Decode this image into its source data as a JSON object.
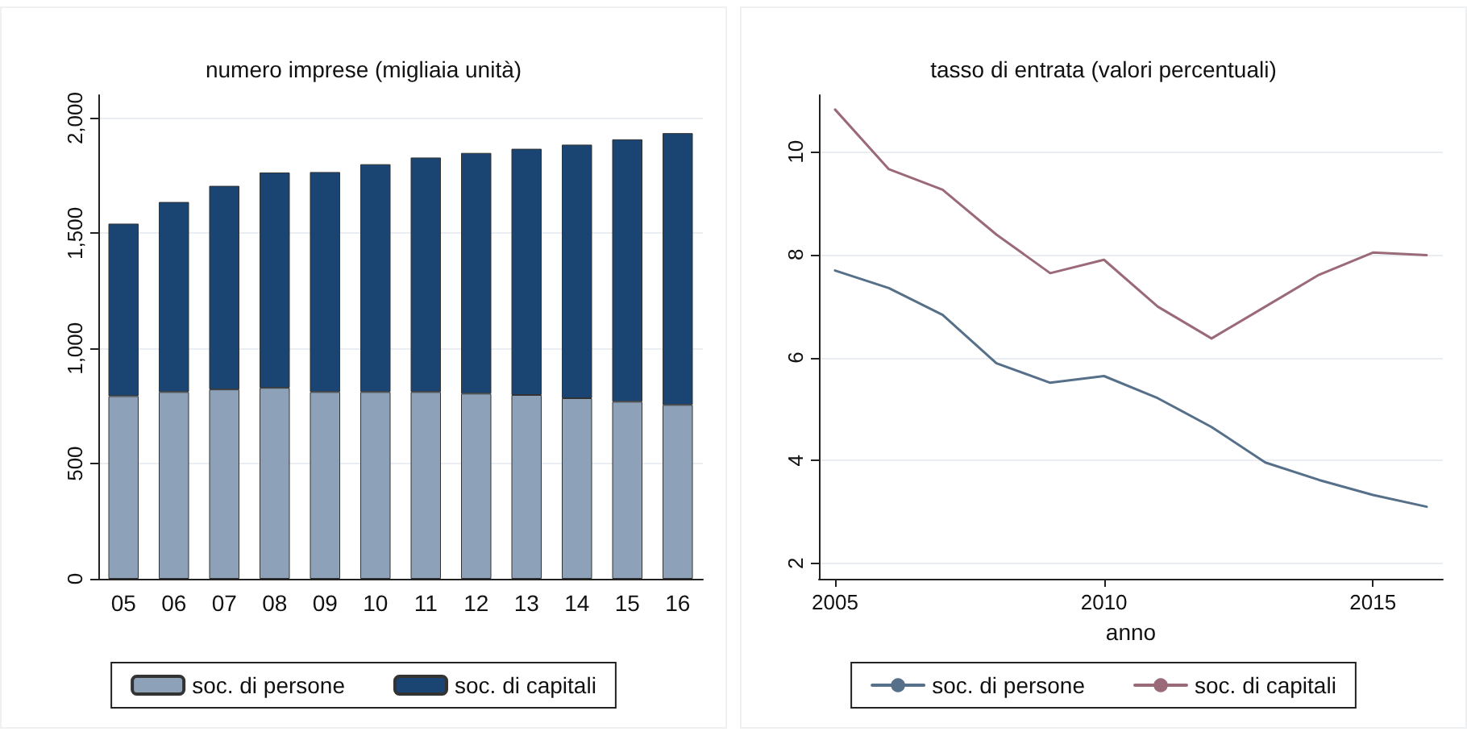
{
  "chart_data": [
    {
      "type": "bar",
      "title": "numero imprese (migliaia unità)",
      "categories": [
        "05",
        "06",
        "07",
        "08",
        "09",
        "10",
        "11",
        "12",
        "13",
        "14",
        "15",
        "16"
      ],
      "stacked": true,
      "series": [
        {
          "name": "soc. di persone",
          "color": "#8da2b8",
          "values": [
            793,
            811,
            822,
            829,
            811,
            811,
            811,
            804,
            798,
            784,
            769,
            755
          ]
        },
        {
          "name": "soc. di capitali",
          "color": "#1a4472",
          "values": [
            749,
            825,
            884,
            935,
            955,
            989,
            1018,
            1045,
            1069,
            1101,
            1139,
            1180
          ]
        }
      ],
      "ylim": [
        0,
        2100
      ],
      "yticks": [
        0,
        500,
        {
          "value": 1000,
          "label": "1,000"
        },
        {
          "value": 1500,
          "label": "1,500"
        },
        {
          "value": 2000,
          "label": "2,000"
        }
      ],
      "grid": "y",
      "legend": "bottom"
    },
    {
      "type": "line",
      "title": "tasso di entrata (valori percentuali)",
      "xlabel": "anno",
      "x": [
        2005,
        2006,
        2007,
        2008,
        2009,
        2010,
        2011,
        2012,
        2013,
        2014,
        2015,
        2016
      ],
      "series": [
        {
          "name": "soc. di persone",
          "color": "#56708a",
          "values": [
            7.69,
            7.35,
            6.83,
            5.89,
            5.51,
            5.64,
            5.21,
            4.65,
            3.96,
            3.62,
            3.33,
            3.1
          ]
        },
        {
          "name": "soc. di capitali",
          "color": "#9b6a78",
          "values": [
            10.82,
            9.66,
            9.26,
            8.39,
            7.64,
            7.9,
            6.99,
            6.37,
            6.99,
            7.61,
            8.04,
            7.99
          ]
        }
      ],
      "xlim": [
        2004.7,
        2016.3
      ],
      "xticks": [
        2005,
        2010,
        2015
      ],
      "ylim": [
        1.7,
        11.1
      ],
      "yticks": [
        2,
        4,
        6,
        8,
        10
      ],
      "grid": "y",
      "legend": "bottom",
      "marker": "none",
      "line_style": "solid"
    }
  ]
}
